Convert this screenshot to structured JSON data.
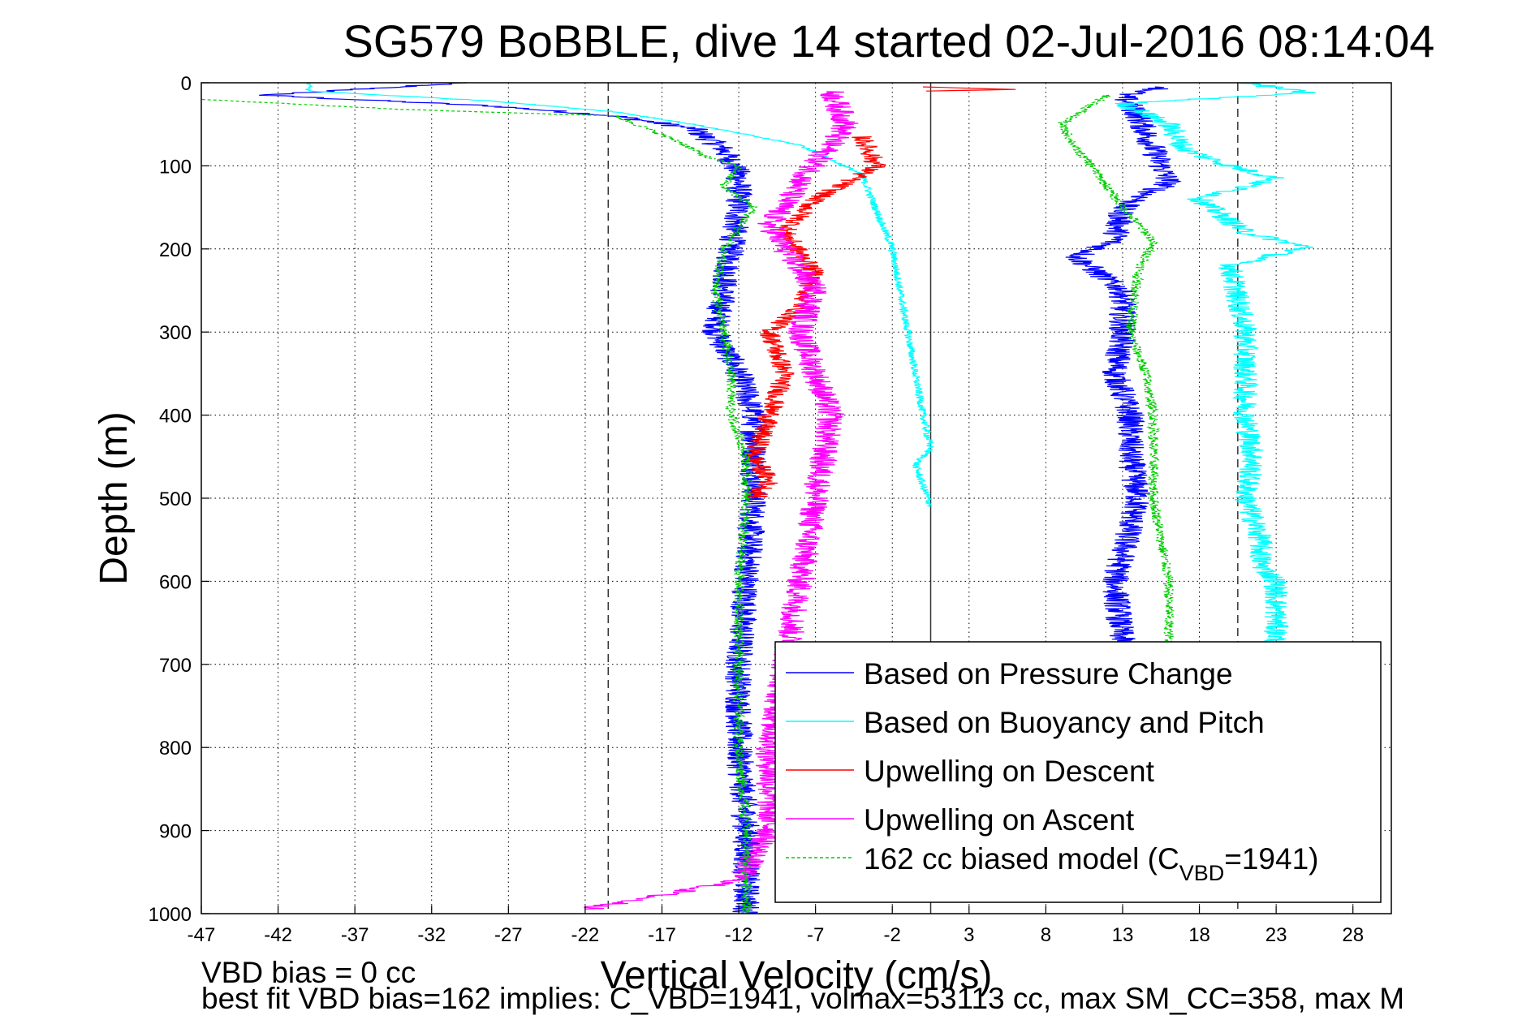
{
  "chart_data": {
    "type": "line",
    "title": "SG579 BoBBLE, dive 14 started 02-Jul-2016 08:14:04",
    "xlabel": "Vertical Velocity (cm/s)",
    "ylabel": "Depth (m)",
    "xlim": [
      -47,
      30.5
    ],
    "ylim": [
      0,
      1000
    ],
    "y_reversed": true,
    "grid": true,
    "xticks": [
      "-47",
      "-42",
      "-37",
      "-32",
      "-27",
      "-22",
      "-17",
      "-12",
      "-7",
      "-2",
      "3",
      "8",
      "13",
      "18",
      "23",
      "28"
    ],
    "yticks": [
      "0",
      "100",
      "200",
      "300",
      "400",
      "500",
      "600",
      "700",
      "800",
      "900",
      "1000"
    ],
    "reference_lines": [
      {
        "x": -20.5,
        "style": "dashed"
      },
      {
        "x": 0.5,
        "style": "solid"
      },
      {
        "x": 20.5,
        "style": "dashed"
      }
    ],
    "legend": {
      "position": "bottom-right",
      "entries": [
        {
          "label": "Based on Pressure Change",
          "color": "#0000ff"
        },
        {
          "label": "Based on Buoyancy and Pitch",
          "color": "#00ffff"
        },
        {
          "label": "Upwelling on Descent",
          "color": "#ff0000"
        },
        {
          "label": "Upwelling on Ascent",
          "color": "#ff00ff"
        },
        {
          "label_prefix": "162 cc biased model (C",
          "label_sub": "VBD",
          "label_suffix": "=1941)",
          "color": "#00cc00",
          "dashed": true
        }
      ]
    },
    "series": [
      {
        "name": "Based on Pressure Change",
        "color": "#0000ff",
        "noise": 0.9,
        "points": [
          [
            -30,
            0
          ],
          [
            -43,
            15
          ],
          [
            -28,
            28
          ],
          [
            -20,
            40
          ],
          [
            -15,
            55
          ],
          [
            -13,
            80
          ],
          [
            -12,
            110
          ],
          [
            -12,
            150
          ],
          [
            -12.5,
            200
          ],
          [
            -13,
            250
          ],
          [
            -13.5,
            300
          ],
          [
            -12,
            350
          ],
          [
            -11,
            400
          ],
          [
            -11,
            450
          ],
          [
            -11,
            500
          ],
          [
            -11.5,
            600
          ],
          [
            -12,
            700
          ],
          [
            -12,
            800
          ],
          [
            -11.5,
            900
          ],
          [
            -11.5,
            1000
          ]
        ]
      },
      {
        "name": "Based on Pressure Change",
        "color": "#0000ff",
        "noise": 0.9,
        "points": [
          [
            16,
            5
          ],
          [
            13,
            15
          ],
          [
            14,
            40
          ],
          [
            15,
            80
          ],
          [
            16,
            120
          ],
          [
            13,
            150
          ],
          [
            12.5,
            190
          ],
          [
            10,
            210
          ],
          [
            13,
            250
          ],
          [
            13,
            300
          ],
          [
            12.5,
            350
          ],
          [
            13.5,
            400
          ],
          [
            13.5,
            450
          ],
          [
            14,
            500
          ],
          [
            12.5,
            600
          ],
          [
            13,
            680
          ]
        ]
      },
      {
        "name": "Based on Buoyancy and Pitch",
        "color": "#00ffff",
        "noise": 0.25,
        "points": [
          [
            -40,
            0
          ],
          [
            -40,
            10
          ],
          [
            -28,
            22
          ],
          [
            -20,
            35
          ],
          [
            -15,
            50
          ],
          [
            -8,
            75
          ],
          [
            -4,
            110
          ],
          [
            -2,
            200
          ],
          [
            -1,
            300
          ],
          [
            0,
            400
          ],
          [
            0.5,
            440
          ],
          [
            -0.5,
            460
          ],
          [
            0.5,
            510
          ]
        ]
      },
      {
        "name": "Based on Buoyancy and Pitch",
        "color": "#00ffff",
        "noise": 0.8,
        "points": [
          [
            21,
            0
          ],
          [
            25,
            12
          ],
          [
            13,
            25
          ],
          [
            16,
            50
          ],
          [
            17,
            80
          ],
          [
            20,
            100
          ],
          [
            23,
            115
          ],
          [
            18,
            140
          ],
          [
            21,
            180
          ],
          [
            25,
            198
          ],
          [
            20,
            220
          ],
          [
            21,
            300
          ],
          [
            21,
            350
          ],
          [
            21,
            400
          ],
          [
            21.5,
            450
          ],
          [
            21,
            500
          ],
          [
            22,
            550
          ],
          [
            22,
            580
          ],
          [
            23,
            600
          ],
          [
            23,
            680
          ]
        ]
      },
      {
        "name": "Upwelling on Descent",
        "color": "#ff0000",
        "noise": 0.7,
        "points": [
          [
            -4,
            65
          ],
          [
            -3,
            100
          ],
          [
            -7,
            140
          ],
          [
            -9,
            180
          ],
          [
            -7,
            230
          ],
          [
            -8,
            270
          ],
          [
            -10,
            300
          ],
          [
            -9,
            350
          ],
          [
            -10,
            400
          ],
          [
            -11,
            450
          ],
          [
            -10,
            480
          ],
          [
            -11,
            500
          ]
        ]
      },
      {
        "name": "Upwelling on Descent",
        "color": "#ff0000",
        "noise": 0.3,
        "points": [
          [
            0,
            10
          ],
          [
            6,
            8
          ],
          [
            0,
            5
          ]
        ]
      },
      {
        "name": "Upwelling on Ascent",
        "color": "#ff00ff",
        "noise": 0.9,
        "points": [
          [
            -6,
            10
          ],
          [
            -5,
            50
          ],
          [
            -8,
            120
          ],
          [
            -10,
            170
          ],
          [
            -9,
            200
          ],
          [
            -7,
            250
          ],
          [
            -8,
            300
          ],
          [
            -6,
            400
          ],
          [
            -7,
            500
          ],
          [
            -8,
            600
          ],
          [
            -9,
            700
          ],
          [
            -10,
            800
          ],
          [
            -10,
            900
          ],
          [
            -12,
            960
          ],
          [
            -22,
            995
          ]
        ]
      },
      {
        "name": "162 cc biased model (CVBD=1941)",
        "color": "#00cc00",
        "noise": 0.35,
        "points": [
          [
            -47,
            20
          ],
          [
            -34,
            32
          ],
          [
            -20,
            40
          ],
          [
            -16,
            70
          ],
          [
            -14,
            90
          ],
          [
            -12,
            100
          ],
          [
            -13,
            125
          ],
          [
            -11,
            150
          ],
          [
            -13,
            200
          ],
          [
            -13.5,
            250
          ],
          [
            -13,
            300
          ],
          [
            -12.5,
            350
          ],
          [
            -12.5,
            400
          ],
          [
            -11.5,
            450
          ],
          [
            -11.5,
            500
          ],
          [
            -12,
            600
          ],
          [
            -12,
            700
          ],
          [
            -12,
            800
          ],
          [
            -11.5,
            900
          ],
          [
            -11.5,
            1000
          ]
        ]
      },
      {
        "name": "162 cc biased model (CVBD=1941)",
        "color": "#00cc00",
        "noise": 0.35,
        "points": [
          [
            12,
            15
          ],
          [
            9,
            50
          ],
          [
            10,
            80
          ],
          [
            11,
            100
          ],
          [
            13,
            150
          ],
          [
            15,
            190
          ],
          [
            14,
            230
          ],
          [
            13.5,
            300
          ],
          [
            14.5,
            350
          ],
          [
            15,
            400
          ],
          [
            15,
            500
          ],
          [
            15.5,
            550
          ],
          [
            16,
            600
          ],
          [
            16,
            680
          ]
        ]
      }
    ]
  },
  "footnotes": {
    "line1": "VBD bias = 0 cc",
    "line2": "best fit VBD bias=162 implies: C_VBD=1941, volmax=53113 cc, max SM_CC=358, max M"
  }
}
